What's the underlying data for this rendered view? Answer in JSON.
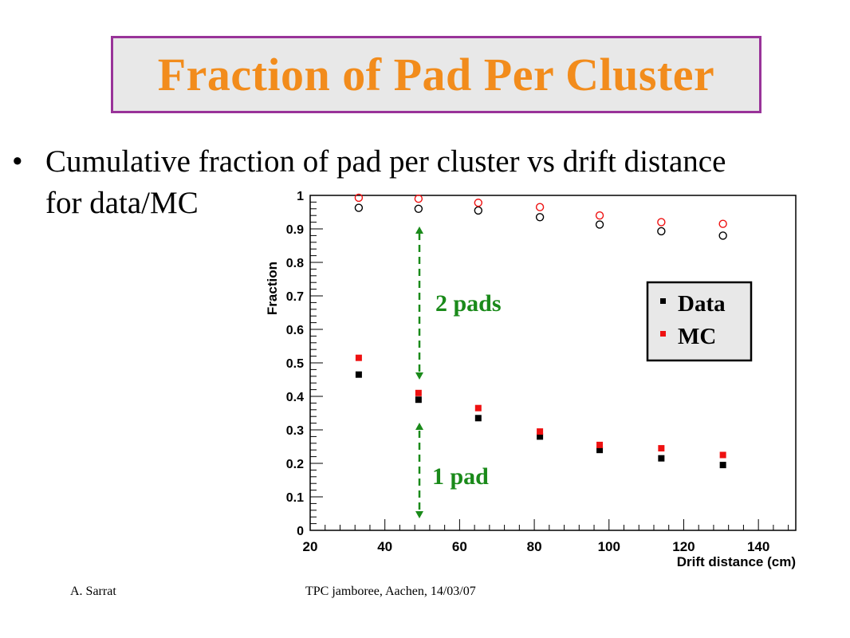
{
  "slide": {
    "title": "Fraction of Pad Per Cluster",
    "bullet_line1": "Cumulative fraction of pad per cluster vs drift distance",
    "bullet_line2": "for data/MC",
    "footer_author": "A. Sarrat",
    "footer_event": "TPC jamboree, Aachen, 14/03/07"
  },
  "annotations": {
    "two_pads": "2 pads",
    "one_pad": "1 pad",
    "color": "#1a8a1a"
  },
  "chart_data": {
    "type": "scatter",
    "xlabel": "Drift distance (cm)",
    "ylabel": "Fraction",
    "xlim": [
      20,
      150
    ],
    "ylim": [
      0,
      1
    ],
    "xticks": [
      20,
      40,
      60,
      80,
      100,
      120,
      140
    ],
    "yticks": [
      0,
      0.1,
      0.2,
      0.3,
      0.4,
      0.5,
      0.6,
      0.7,
      0.8,
      0.9,
      1
    ],
    "ytick_labels": [
      "0",
      "0.1",
      "0.2",
      "0.3",
      "0.4",
      "0.5",
      "0.6",
      "0.7",
      "0.8",
      "0.9",
      "1"
    ],
    "grid": false,
    "legend_position": "upper right",
    "series": [
      {
        "name": "Data",
        "marker": "square",
        "color": "#000000",
        "x": [
          33,
          49,
          65,
          81.5,
          97.5,
          114,
          130.5
        ],
        "y": [
          0.465,
          0.39,
          0.335,
          0.28,
          0.24,
          0.215,
          0.195
        ]
      },
      {
        "name": "MC",
        "marker": "square",
        "color": "#ee1111",
        "x": [
          33,
          49,
          65,
          81.5,
          97.5,
          114,
          130.5
        ],
        "y": [
          0.515,
          0.41,
          0.365,
          0.295,
          0.255,
          0.245,
          0.225
        ]
      },
      {
        "marker": "circle",
        "color": "#000000",
        "x": [
          33,
          49,
          65,
          81.5,
          97.5,
          114,
          130.5
        ],
        "y": [
          0.963,
          0.96,
          0.955,
          0.935,
          0.913,
          0.893,
          0.88
        ]
      },
      {
        "marker": "circle",
        "color": "#ee1111",
        "x": [
          33,
          49,
          65,
          81.5,
          97.5,
          114,
          130.5
        ],
        "y": [
          0.993,
          0.99,
          0.978,
          0.965,
          0.94,
          0.92,
          0.915
        ]
      }
    ]
  }
}
